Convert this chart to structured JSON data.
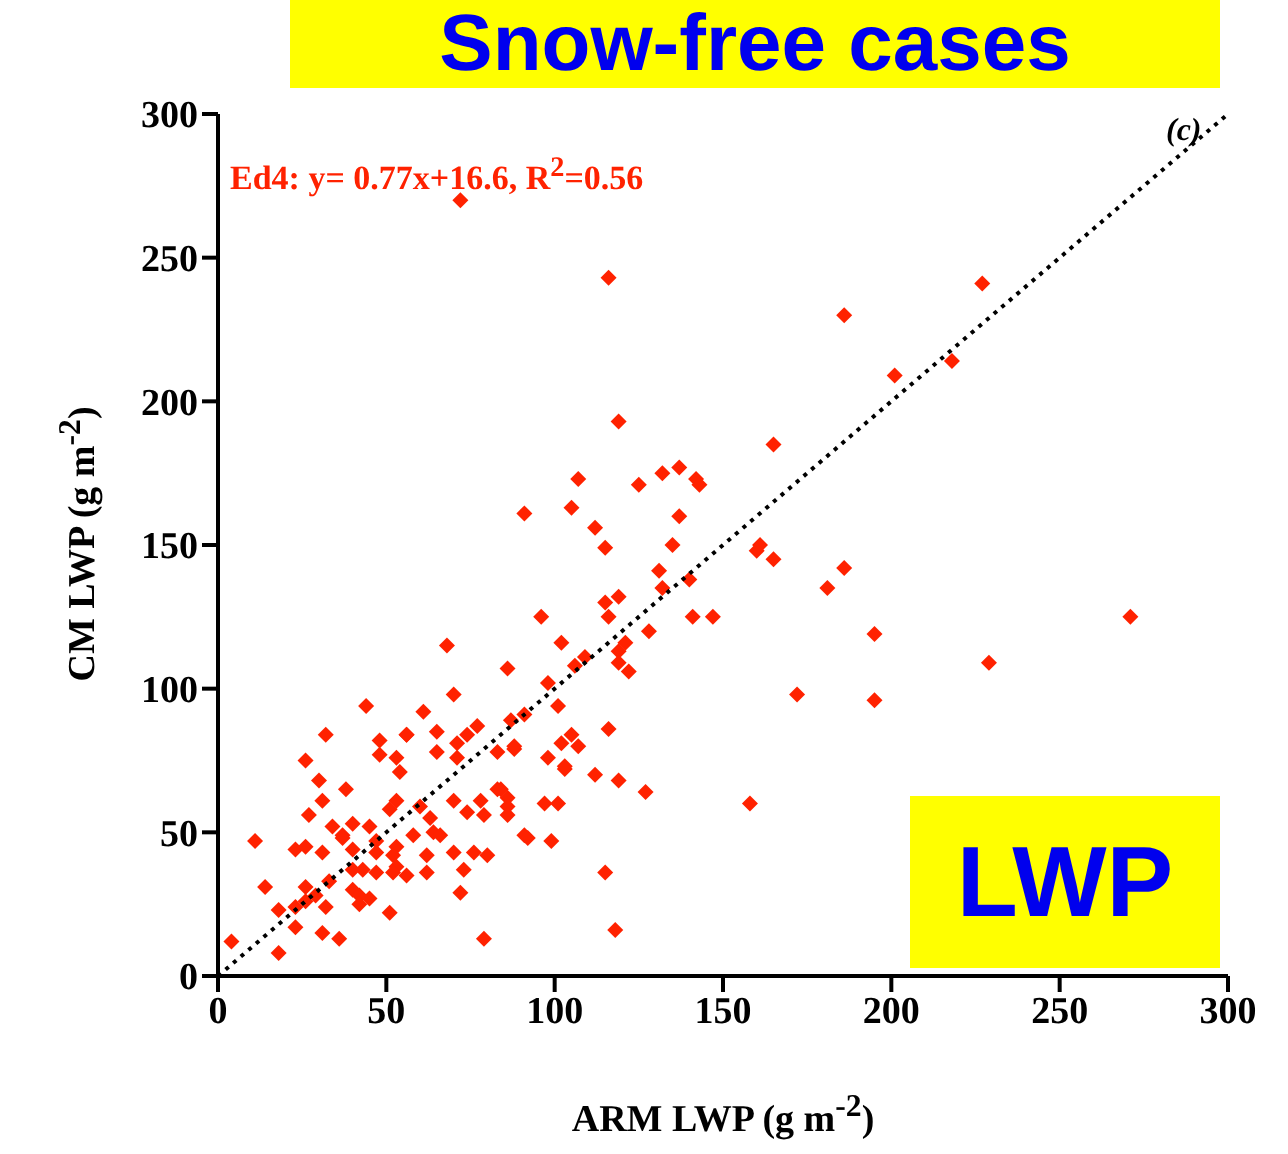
{
  "chart_data": {
    "type": "scatter",
    "title": "Snow-free cases",
    "xlabel": "ARM LWP (g m$^{-2}$)",
    "ylabel": "CM LWP (g m$^{-2}$)",
    "annotations": [
      "Ed4: y= 0.77x+16.6, R$^{2}$=0.56",
      "(c)",
      "LWP"
    ],
    "xlim": [
      0,
      300
    ],
    "ylim": [
      0,
      300
    ],
    "xticks": [
      0,
      50,
      100,
      150,
      200,
      250,
      300
    ],
    "yticks": [
      0,
      50,
      100,
      150,
      200,
      250,
      300
    ],
    "marker": "diamond",
    "series": [
      {
        "type": "scatter",
        "color": "#ff2200",
        "x": [
          72,
          116,
          186,
          227,
          201,
          218,
          271,
          119,
          165,
          107,
          125,
          132,
          137,
          142,
          143,
          91,
          105,
          112,
          137,
          115,
          135,
          161,
          160,
          165,
          186,
          131,
          132,
          140,
          181,
          115,
          119,
          96,
          116,
          141,
          147,
          195,
          128,
          102,
          119,
          121,
          109,
          106,
          119,
          122,
          229,
          86,
          98,
          172,
          195,
          101,
          91,
          87,
          116,
          105,
          102,
          107,
          88,
          98,
          103,
          112,
          119,
          127,
          84,
          86,
          86,
          86,
          97,
          101,
          158,
          91,
          92,
          99,
          115,
          118,
          68,
          70,
          44,
          61,
          32,
          48,
          56,
          56,
          65,
          77,
          74,
          48,
          65,
          71,
          71,
          26,
          53,
          54,
          88,
          83,
          103,
          30,
          38,
          83,
          53,
          60,
          70,
          78,
          74,
          79,
          31,
          27,
          51,
          63,
          64,
          66,
          40,
          34,
          37,
          45,
          47,
          53,
          58,
          11,
          23,
          26,
          31,
          37,
          40,
          47,
          52,
          53,
          43,
          40,
          47,
          52,
          56,
          62,
          62,
          70,
          33,
          26,
          29,
          26,
          23,
          32,
          40,
          42,
          42,
          45,
          18,
          23,
          14,
          51,
          31,
          36,
          18,
          4,
          72,
          79,
          76,
          80,
          73
        ],
        "values": [
          270,
          243,
          230,
          241,
          209,
          214,
          125,
          193,
          185,
          173,
          171,
          175,
          177,
          173,
          171,
          161,
          163,
          156,
          160,
          149,
          150,
          150,
          148,
          145,
          142,
          141,
          135,
          138,
          135,
          130,
          132,
          125,
          125,
          125,
          125,
          119,
          120,
          116,
          113,
          116,
          111,
          108,
          109,
          106,
          109,
          107,
          102,
          98,
          96,
          94,
          91,
          89,
          86,
          84,
          81,
          80,
          79,
          76,
          72,
          70,
          68,
          64,
          65,
          62,
          59,
          56,
          60,
          60,
          60,
          49,
          48,
          47,
          36,
          16,
          115,
          98,
          94,
          92,
          84,
          82,
          84,
          84,
          85,
          87,
          84,
          77,
          78,
          81,
          76,
          75,
          76,
          71,
          80,
          78,
          73,
          68,
          65,
          65,
          61,
          59,
          61,
          61,
          57,
          56,
          61,
          56,
          58,
          55,
          50,
          49,
          53,
          52,
          49,
          52,
          47,
          45,
          49,
          47,
          44,
          45,
          43,
          48,
          44,
          43,
          42,
          38,
          37,
          37,
          36,
          36,
          35,
          36,
          42,
          43,
          33,
          31,
          28,
          26,
          24,
          24,
          30,
          28,
          25,
          27,
          23,
          17,
          31,
          22,
          15,
          13,
          8,
          12,
          29,
          13,
          43,
          42,
          37
        ]
      },
      {
        "type": "line",
        "color": "#000000",
        "x": [
          0,
          300
        ],
        "values": [
          0,
          300
        ],
        "line_style": "dotted",
        "marker": "none"
      }
    ]
  }
}
